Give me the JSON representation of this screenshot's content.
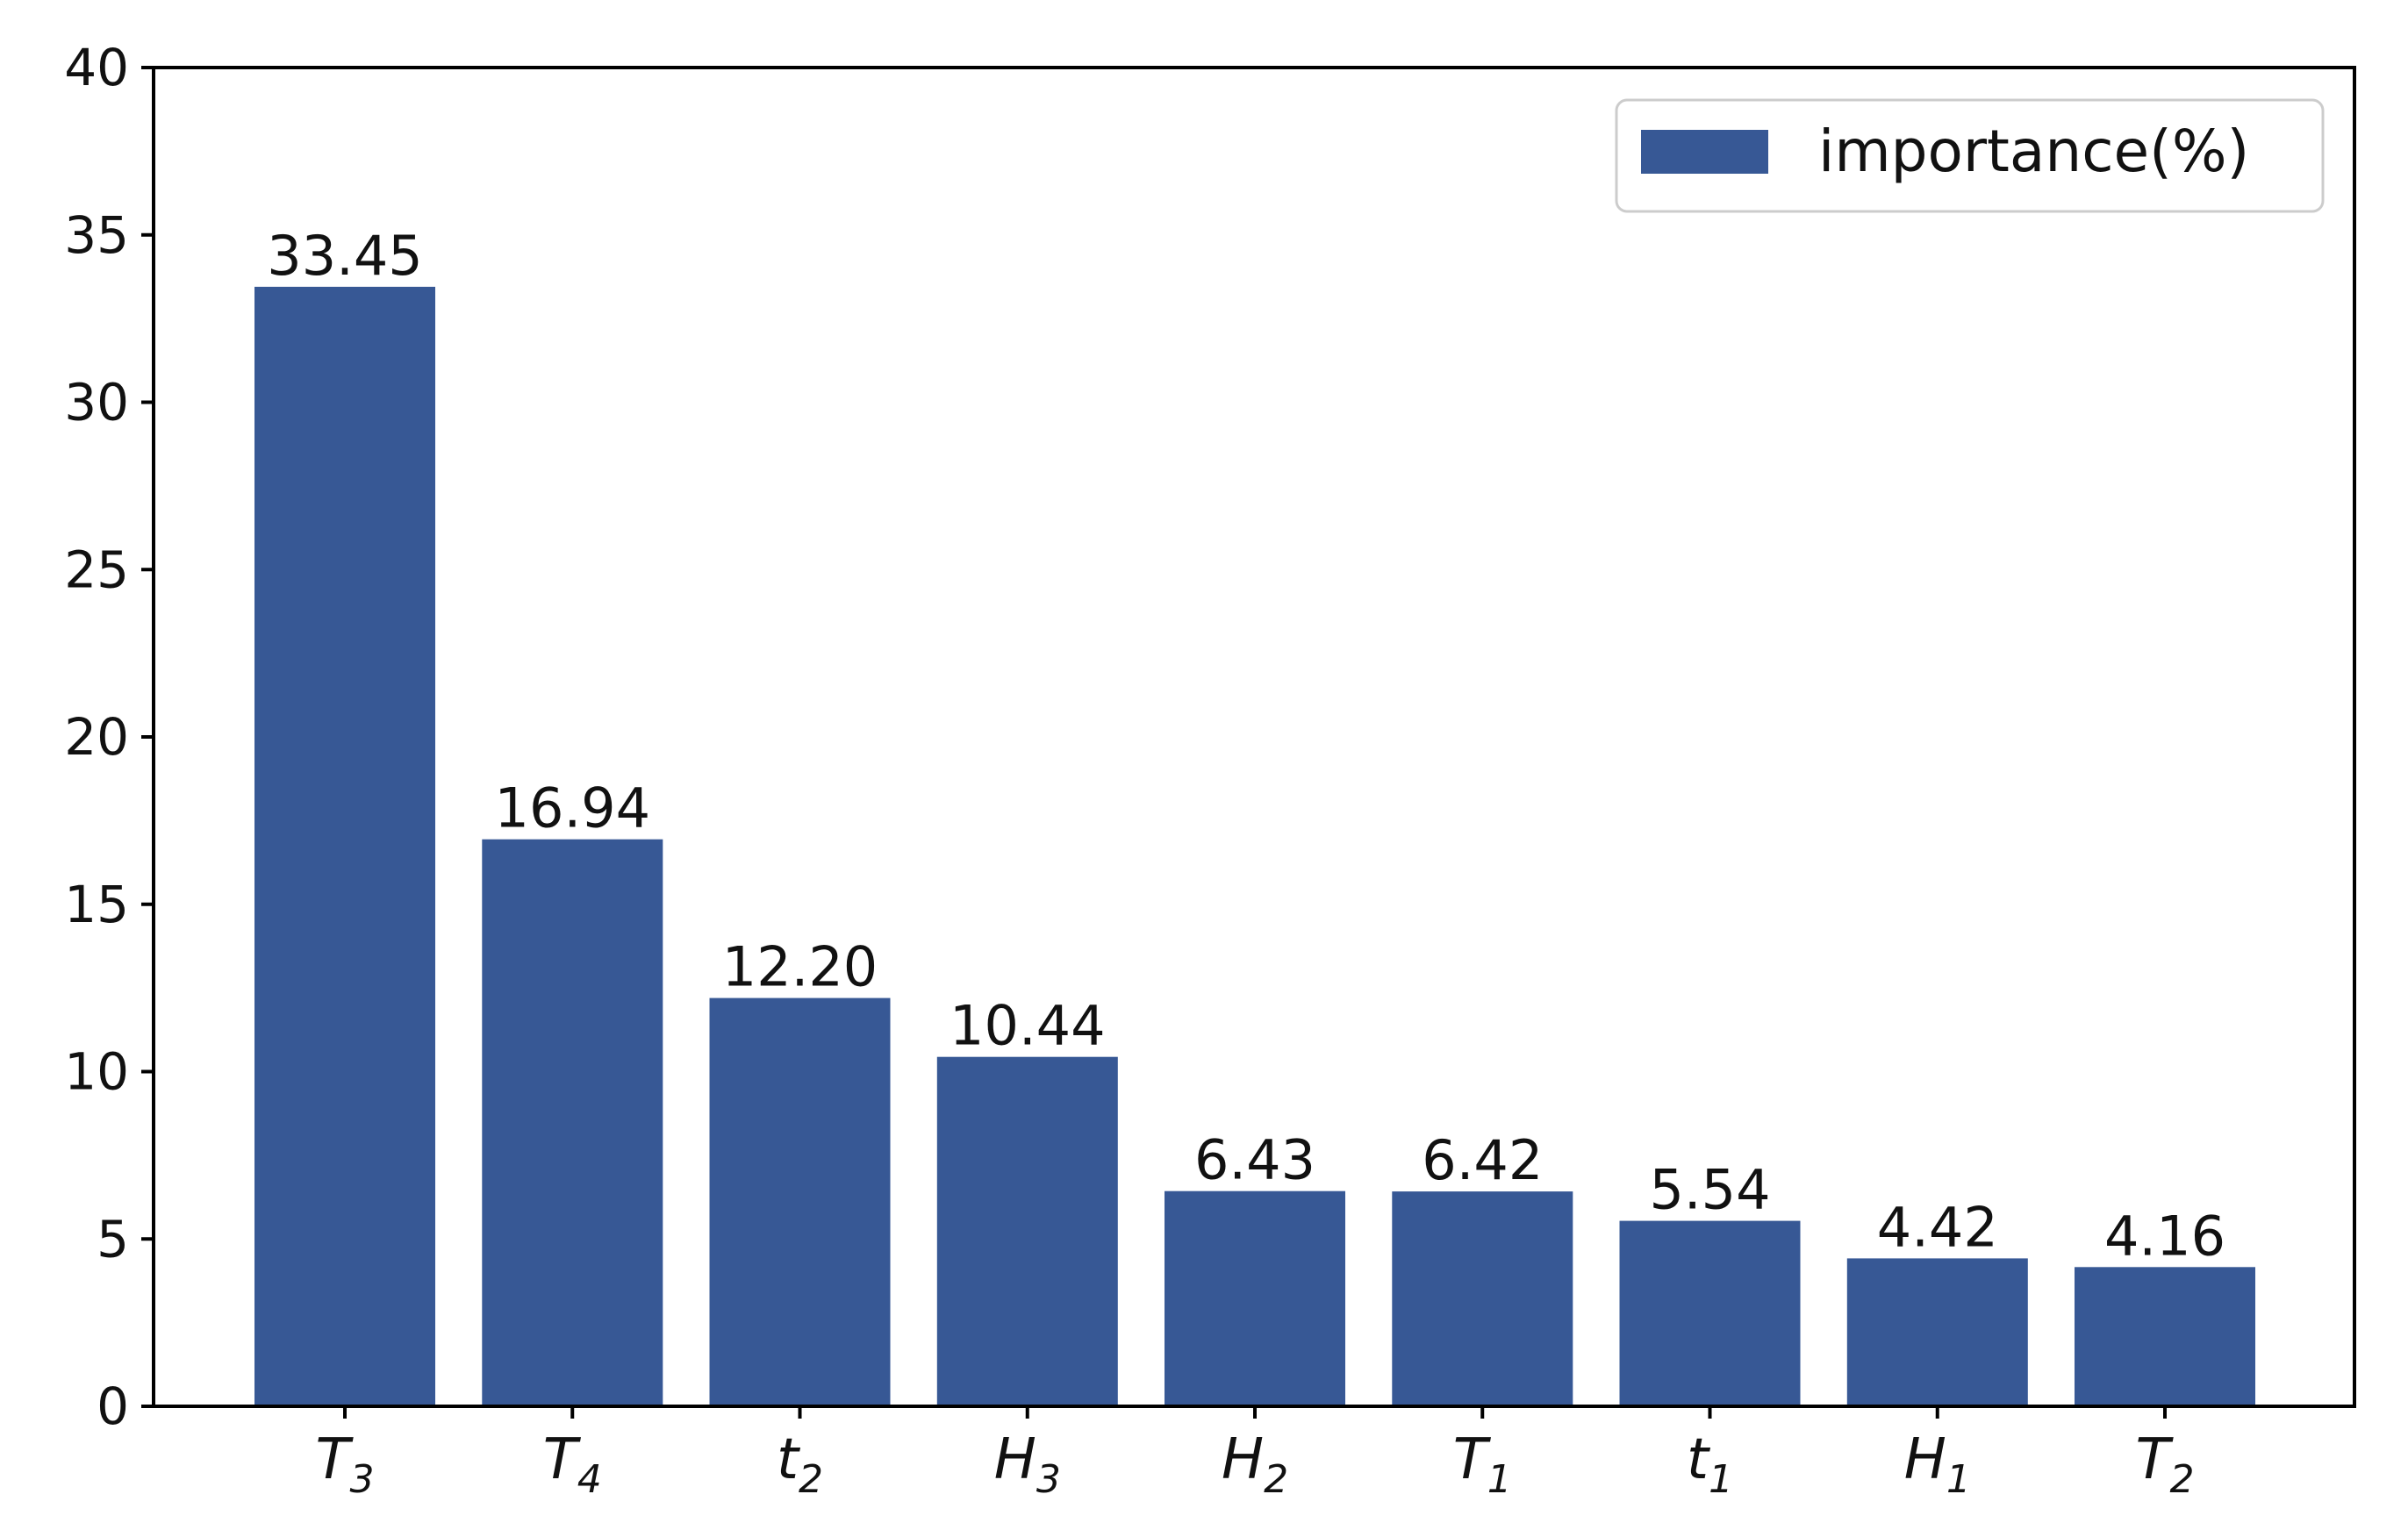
{
  "chart_data": {
    "type": "bar",
    "categories": [
      {
        "base": "T",
        "sub": "3"
      },
      {
        "base": "T",
        "sub": "4"
      },
      {
        "base": "t",
        "sub": "2"
      },
      {
        "base": "H",
        "sub": "3"
      },
      {
        "base": "H",
        "sub": "2"
      },
      {
        "base": "T",
        "sub": "1"
      },
      {
        "base": "t",
        "sub": "1"
      },
      {
        "base": "H",
        "sub": "1"
      },
      {
        "base": "T",
        "sub": "2"
      }
    ],
    "series": [
      {
        "name": "importance(%)",
        "values": [
          33.45,
          16.94,
          12.2,
          10.44,
          6.43,
          6.42,
          5.54,
          4.42,
          4.16
        ],
        "value_labels": [
          "33.45",
          "16.94",
          "12.20",
          "10.44",
          "6.43",
          "6.42",
          "5.54",
          "4.42",
          "4.16"
        ]
      }
    ],
    "ylim": [
      0,
      40
    ],
    "yticks": [
      0,
      5,
      10,
      15,
      20,
      25,
      30,
      35,
      40
    ],
    "xlabel": "",
    "ylabel": "",
    "title": "",
    "grid": false,
    "legend_position": "top-right",
    "bar_color": "#375895"
  }
}
